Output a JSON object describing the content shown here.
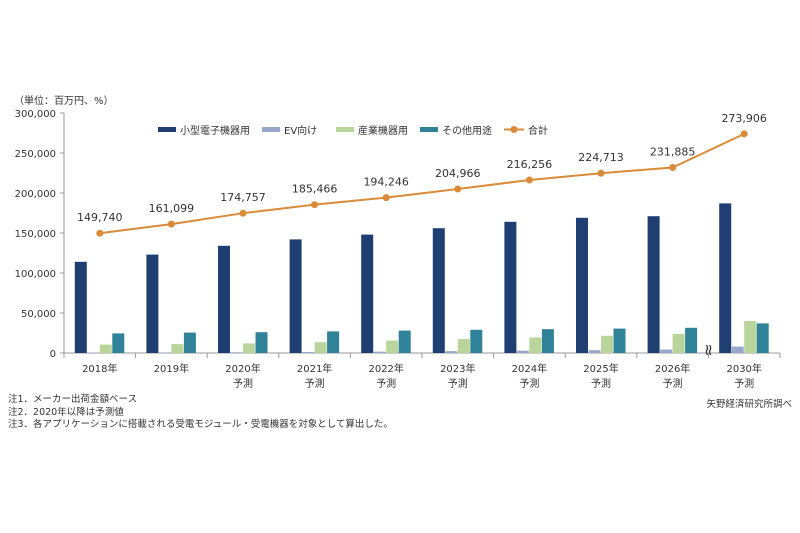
{
  "chart_data": {
    "type": "bar",
    "unit_label": "（単位：百万円、%）",
    "categories": [
      {
        "year": "2018年",
        "sub": ""
      },
      {
        "year": "2019年",
        "sub": ""
      },
      {
        "year": "2020年",
        "sub": "予測"
      },
      {
        "year": "2021年",
        "sub": "予測"
      },
      {
        "year": "2022年",
        "sub": "予測"
      },
      {
        "year": "2023年",
        "sub": "予測"
      },
      {
        "year": "2024年",
        "sub": "予測"
      },
      {
        "year": "2025年",
        "sub": "予測"
      },
      {
        "year": "2026年",
        "sub": "予測"
      },
      {
        "year": "2030年",
        "sub": "予測"
      }
    ],
    "series": [
      {
        "name": "小型電子機器用",
        "color": "#1f3f73",
        "values": [
          114000,
          123000,
          134000,
          142000,
          148000,
          156000,
          164000,
          169000,
          171000,
          187000
        ]
      },
      {
        "name": "EV向け",
        "color": "#98a6c9",
        "values": [
          500,
          700,
          900,
          1200,
          1700,
          2300,
          2900,
          3500,
          4300,
          8000
        ]
      },
      {
        "name": "産業機器用",
        "color": "#b9d59b",
        "values": [
          10500,
          11200,
          12000,
          13500,
          15500,
          17500,
          19500,
          21500,
          24000,
          40000
        ]
      },
      {
        "name": "その他用途",
        "color": "#2f8298",
        "values": [
          24500,
          25500,
          26000,
          27000,
          28000,
          29000,
          29800,
          30500,
          31500,
          37000
        ]
      }
    ],
    "line": {
      "name": "合計",
      "color": "#d98b3a",
      "values": [
        149740,
        161099,
        174757,
        185466,
        194246,
        204966,
        216256,
        224713,
        231885,
        273906
      ],
      "labels": [
        "149,740",
        "161,099",
        "174,757",
        "185,466",
        "194,246",
        "204,966",
        "216,256",
        "224,713",
        "231,885",
        "273,906"
      ]
    },
    "ylim": [
      0,
      300000
    ],
    "yticks": [
      {
        "value": 0,
        "label": "0"
      },
      {
        "value": 50000,
        "label": "50,000"
      },
      {
        "value": 100000,
        "label": "100,000"
      },
      {
        "value": 150000,
        "label": "150,000"
      },
      {
        "value": 200000,
        "label": "200,000"
      },
      {
        "value": 250000,
        "label": "250,000"
      },
      {
        "value": 300000,
        "label": "300,000"
      }
    ],
    "legend_position": "top",
    "axis_break_symbol": "≈",
    "grid": false
  },
  "notes": [
    "注1．メーカー出荷金額ベース",
    "注2．2020年以降は予測値",
    "注3．各アプリケーションに搭載される受電モジュール・受電機器を対象として算出した。"
  ],
  "source": "矢野経済研究所調べ"
}
